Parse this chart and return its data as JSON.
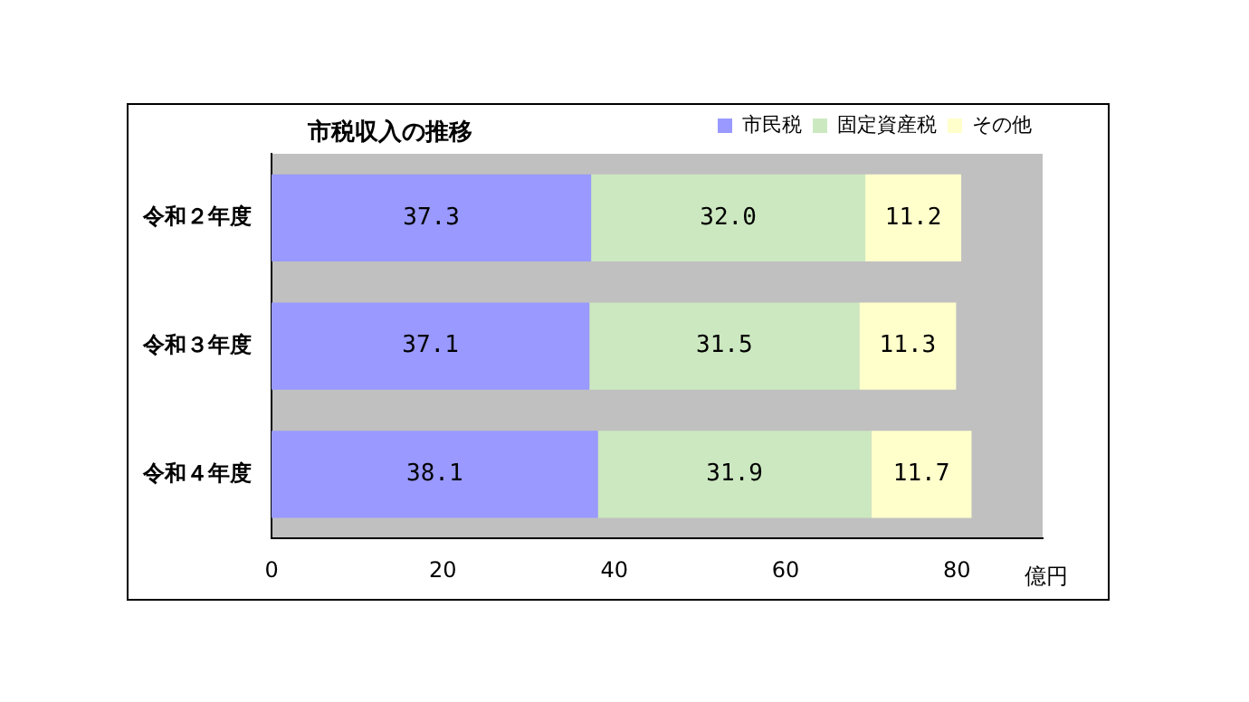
{
  "chart_data": {
    "type": "bar",
    "orientation": "horizontal",
    "stacked": true,
    "title": "市税収入の推移",
    "xlabel": "億円",
    "categories": [
      "令和２年度",
      "令和３年度",
      "令和４年度"
    ],
    "series": [
      {
        "name": "市民税",
        "color": "#9999ff",
        "values": [
          37.3,
          37.1,
          38.1
        ],
        "value_labels": [
          "37.3",
          "37.1",
          "38.1"
        ]
      },
      {
        "name": "固定資産税",
        "color": "#cce8c0",
        "values": [
          32.0,
          31.5,
          31.9
        ],
        "value_labels": [
          "32.0",
          "31.5",
          "31.9"
        ]
      },
      {
        "name": "その他",
        "color": "#ffffcc",
        "values": [
          11.2,
          11.3,
          11.7
        ],
        "value_labels": [
          "11.2",
          "11.3",
          "11.7"
        ]
      }
    ],
    "xlim": [
      0,
      90
    ],
    "xticks": [
      0,
      20,
      40,
      60,
      80
    ],
    "grid": false,
    "legend": "top right"
  }
}
